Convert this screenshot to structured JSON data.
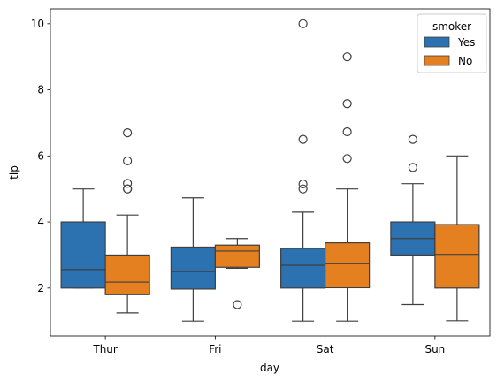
{
  "chart_data": {
    "type": "box",
    "xlabel": "day",
    "ylabel": "tip",
    "categories": [
      "Thur",
      "Fri",
      "Sat",
      "Sun"
    ],
    "ylim": [
      0.55,
      10.45
    ],
    "yticks": [
      2,
      4,
      6,
      8,
      10
    ],
    "legend": {
      "title": "smoker",
      "placement": "top-right"
    },
    "series": [
      {
        "name": "Yes",
        "color": "#2c72b0",
        "boxes": [
          {
            "whisker_low": 2.0,
            "q1": 2.0,
            "median": 2.56,
            "q3": 4.0,
            "whisker_high": 5.0,
            "outliers": []
          },
          {
            "whisker_low": 1.0,
            "q1": 1.97,
            "median": 2.5,
            "q3": 3.24,
            "whisker_high": 4.73,
            "outliers": []
          },
          {
            "whisker_low": 1.0,
            "q1": 2.0,
            "median": 2.69,
            "q3": 3.2,
            "whisker_high": 4.3,
            "outliers": [
              5.0,
              5.15,
              6.5,
              10.0
            ]
          },
          {
            "whisker_low": 1.5,
            "q1": 3.0,
            "median": 3.5,
            "q3": 4.0,
            "whisker_high": 5.16,
            "outliers": [
              5.65,
              6.5
            ]
          }
        ]
      },
      {
        "name": "No",
        "color": "#e58021",
        "boxes": [
          {
            "whisker_low": 1.25,
            "q1": 1.8,
            "median": 2.18,
            "q3": 3.0,
            "whisker_high": 4.21,
            "outliers": [
              5.0,
              5.0,
              5.17,
              5.85,
              6.7
            ]
          },
          {
            "whisker_low": 2.6,
            "q1": 2.63,
            "median": 3.12,
            "q3": 3.3,
            "whisker_high": 3.5,
            "outliers": [
              1.5
            ]
          },
          {
            "whisker_low": 1.0,
            "q1": 2.01,
            "median": 2.75,
            "q3": 3.37,
            "whisker_high": 5.0,
            "outliers": [
              5.92,
              6.73,
              7.58,
              9.0
            ]
          },
          {
            "whisker_low": 1.01,
            "q1": 2.0,
            "median": 3.02,
            "q3": 3.92,
            "whisker_high": 6.0,
            "outliers": []
          }
        ]
      }
    ]
  }
}
